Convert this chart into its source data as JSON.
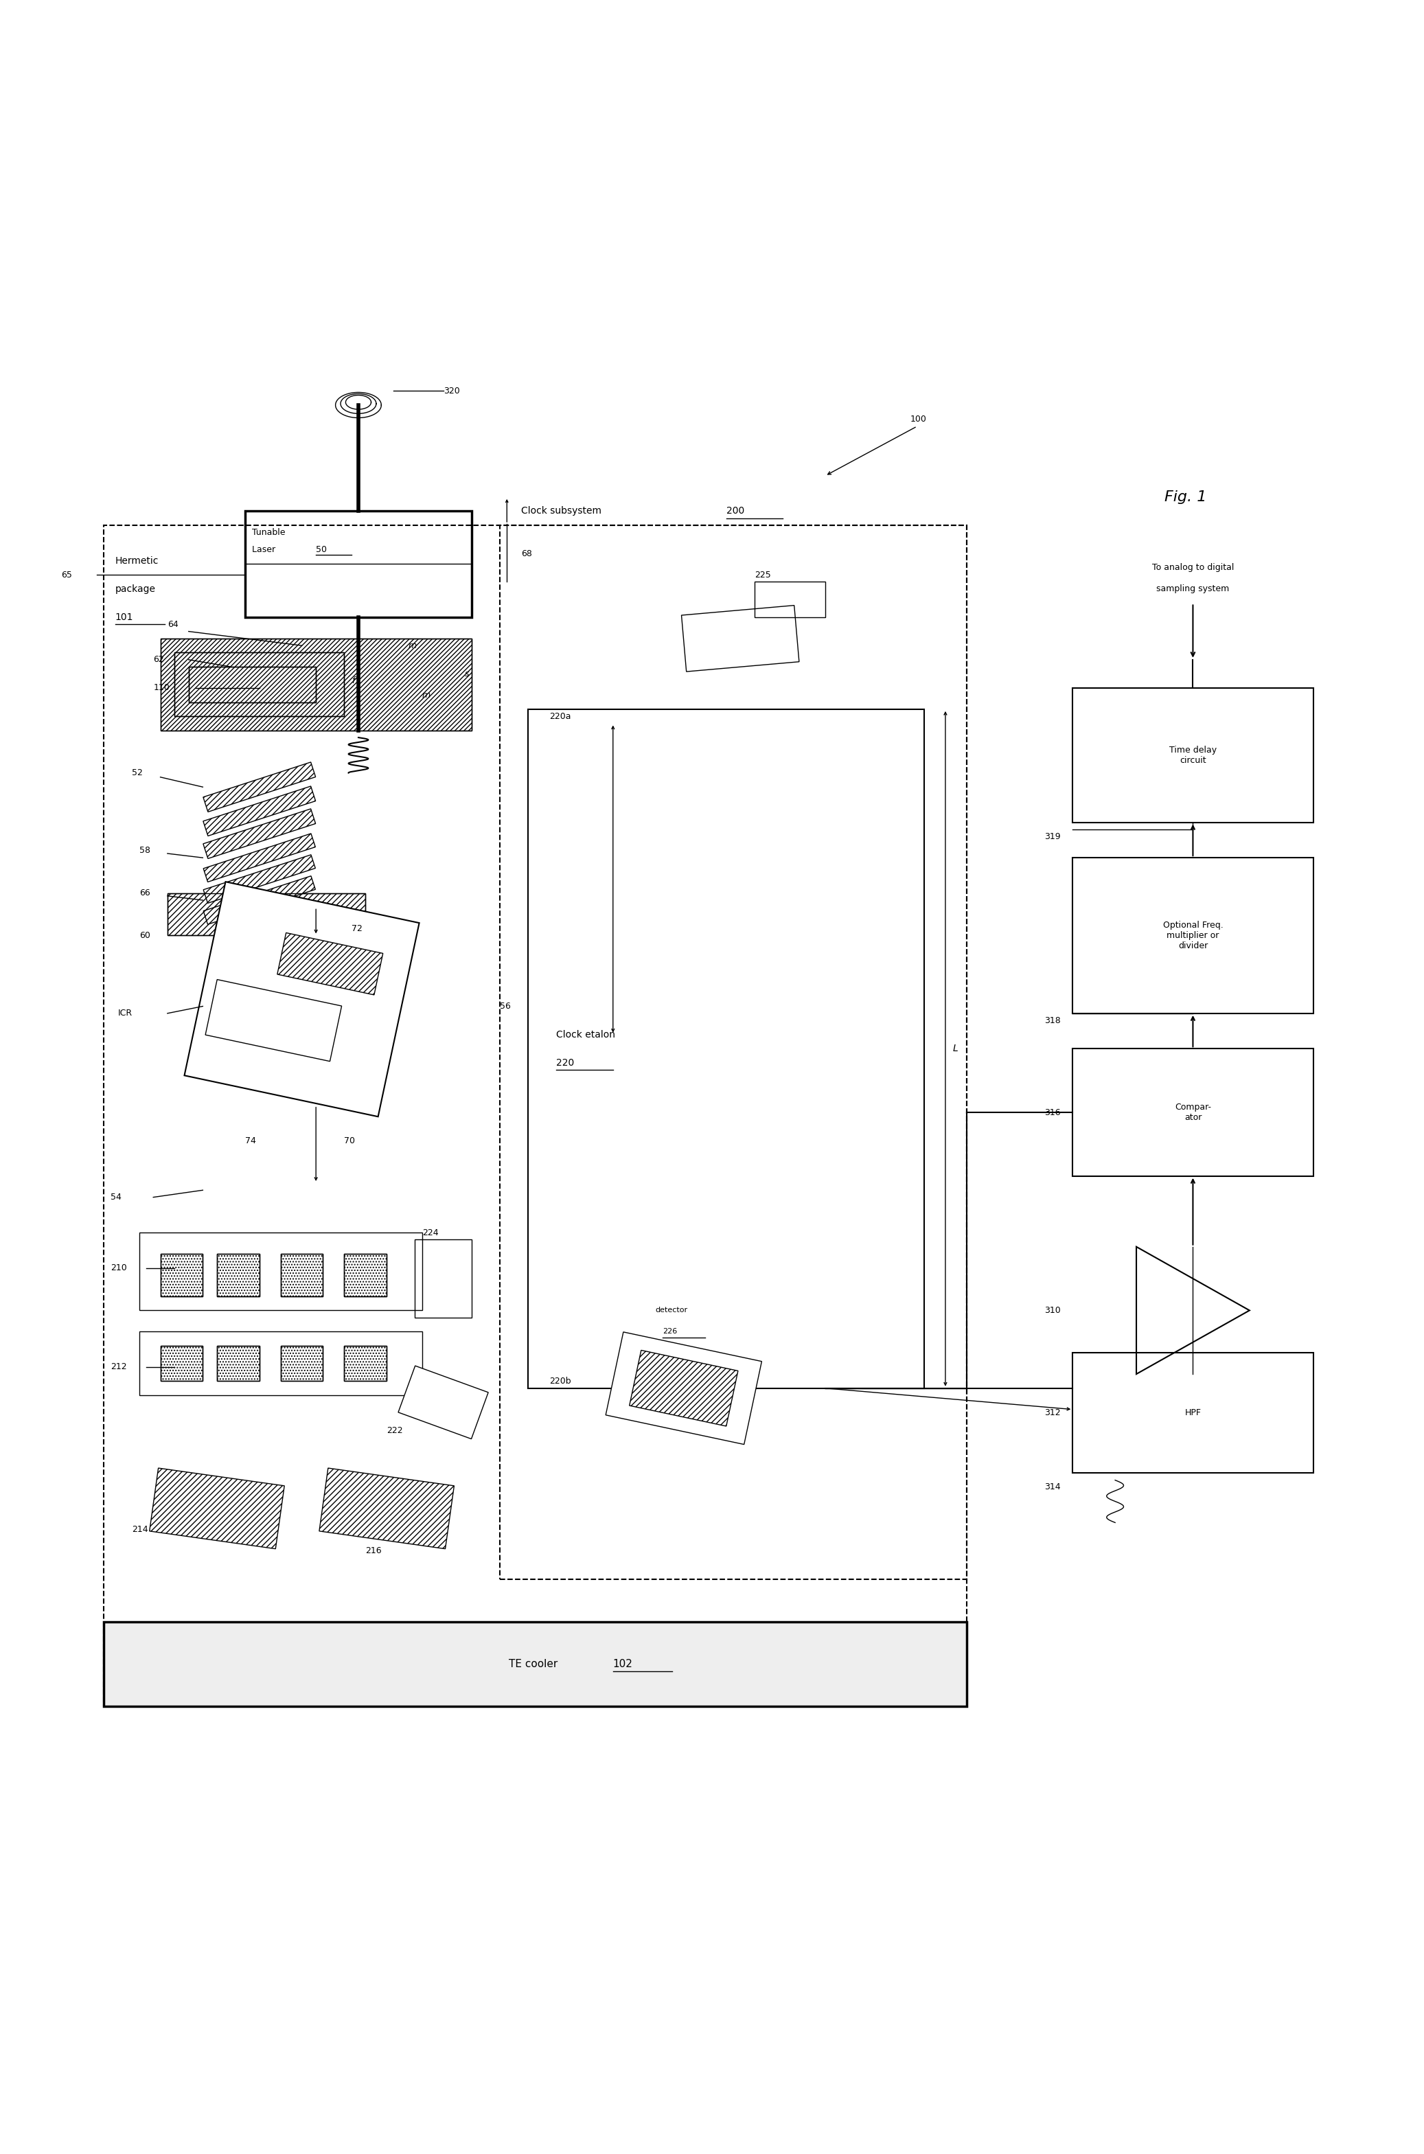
{
  "fig_width": 20.74,
  "fig_height": 31.37,
  "bg_color": "#ffffff",
  "fig_label": "Fig. 1",
  "labels": {
    "tunable_laser": "Tunable\nLaser 50",
    "hermetic_package": "Hermetic\npackage\n101",
    "clock_subsystem": "Clock subsystem 200",
    "clock_etalon": "Clock etalon\n220",
    "te_cooler": "TE cooler 102",
    "to_adc": "To analog to digital\nsampling system",
    "time_delay": "Time delay\ncircuit",
    "opt_freq": "Optional Freq.\nmultiplier or\ndivider",
    "comparator": "Compar-\nator",
    "hpf": "HPF",
    "detector": "detector\n226",
    "ref_320": "320",
    "ref_100": "100",
    "ref_68": "68",
    "ref_65": "65",
    "ref_64": "64",
    "ref_62": "62",
    "ref_110": "110",
    "ref_52": "52",
    "ref_58": "58",
    "ref_66": "66",
    "ref_60": "60",
    "ref_56": "56",
    "ref_72": "72",
    "ref_ICR": "ICR",
    "ref_74": "74",
    "ref_70": "70",
    "ref_54": "54",
    "ref_210": "210",
    "ref_212": "212",
    "ref_214": "214",
    "ref_216": "216",
    "ref_222": "222",
    "ref_224": "224",
    "ref_225": "225",
    "ref_220a": "220a",
    "ref_220b": "220b",
    "ref_f": "f",
    "ref_m1": "m",
    "ref_m2": "m",
    "ref_s": "s",
    "ref_L": "L",
    "ref_310": "310",
    "ref_312": "312",
    "ref_314": "314",
    "ref_316": "316",
    "ref_318": "318",
    "ref_319": "319"
  }
}
